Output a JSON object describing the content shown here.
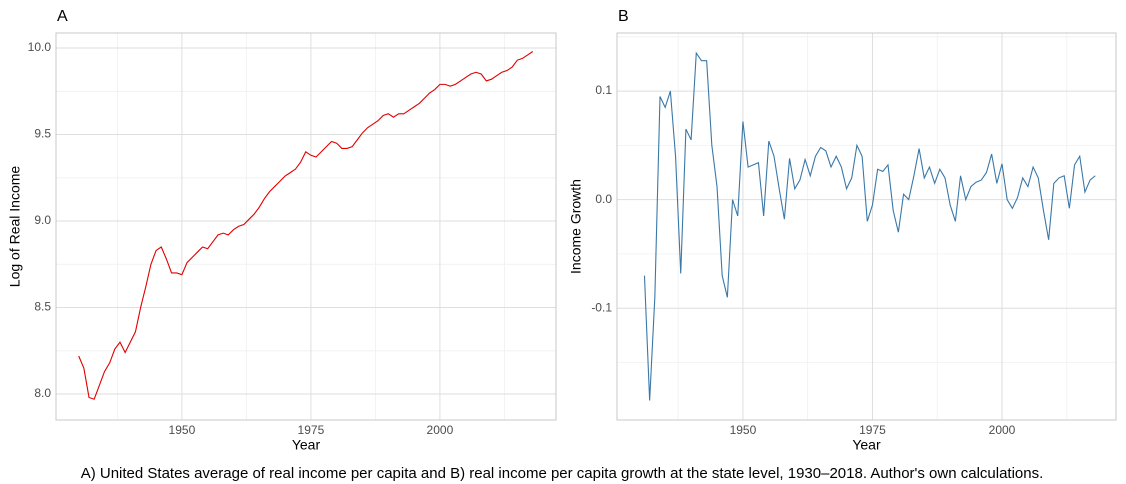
{
  "chart_data": [
    {
      "type": "line",
      "title": "A",
      "xlabel": "Year",
      "ylabel": "Log of Real Income",
      "color": "#e00000",
      "x": [
        1930,
        1931,
        1932,
        1933,
        1934,
        1935,
        1936,
        1937,
        1938,
        1939,
        1940,
        1941,
        1942,
        1943,
        1944,
        1945,
        1946,
        1947,
        1948,
        1949,
        1950,
        1951,
        1952,
        1953,
        1954,
        1955,
        1956,
        1957,
        1958,
        1959,
        1960,
        1961,
        1962,
        1963,
        1964,
        1965,
        1966,
        1967,
        1968,
        1969,
        1970,
        1971,
        1972,
        1973,
        1974,
        1975,
        1976,
        1977,
        1978,
        1979,
        1980,
        1981,
        1982,
        1983,
        1984,
        1985,
        1986,
        1987,
        1988,
        1989,
        1990,
        1991,
        1992,
        1993,
        1994,
        1995,
        1996,
        1997,
        1998,
        1999,
        2000,
        2001,
        2002,
        2003,
        2004,
        2005,
        2006,
        2007,
        2008,
        2009,
        2010,
        2011,
        2012,
        2013,
        2014,
        2015,
        2016,
        2017,
        2018
      ],
      "values": [
        8.22,
        8.15,
        7.98,
        7.97,
        8.05,
        8.13,
        8.18,
        8.26,
        8.3,
        8.24,
        8.3,
        8.36,
        8.5,
        8.62,
        8.75,
        8.83,
        8.85,
        8.78,
        8.7,
        8.7,
        8.69,
        8.76,
        8.79,
        8.82,
        8.85,
        8.84,
        8.88,
        8.92,
        8.93,
        8.92,
        8.95,
        8.97,
        8.98,
        9.01,
        9.04,
        9.08,
        9.13,
        9.17,
        9.2,
        9.23,
        9.26,
        9.28,
        9.3,
        9.34,
        9.4,
        9.38,
        9.37,
        9.4,
        9.43,
        9.46,
        9.45,
        9.42,
        9.42,
        9.43,
        9.47,
        9.51,
        9.54,
        9.56,
        9.58,
        9.61,
        9.62,
        9.6,
        9.62,
        9.62,
        9.64,
        9.66,
        9.68,
        9.71,
        9.74,
        9.76,
        9.79,
        9.79,
        9.78,
        9.79,
        9.81,
        9.83,
        9.85,
        9.86,
        9.85,
        9.81,
        9.82,
        9.84,
        9.86,
        9.87,
        9.89,
        9.93,
        9.94,
        9.96,
        9.98
      ],
      "xlim": [
        1925.6,
        2022.5
      ],
      "ylim": [
        7.85,
        10.087
      ],
      "xticks": [
        1950,
        1975,
        2000
      ],
      "yticks": [
        {
          "value": 8,
          "label": "8.0"
        },
        8.5,
        {
          "value": 9,
          "label": "9.0"
        },
        9.5,
        {
          "value": 10,
          "label": "10.0"
        }
      ],
      "grid": true,
      "minor_grid": true
    },
    {
      "type": "line",
      "title": "B",
      "xlabel": "Year",
      "ylabel": "Income Growth",
      "color": "#3a78a8",
      "x": [
        1931,
        1932,
        1933,
        1934,
        1935,
        1936,
        1937,
        1938,
        1939,
        1940,
        1941,
        1942,
        1943,
        1944,
        1945,
        1946,
        1947,
        1948,
        1949,
        1950,
        1951,
        1952,
        1953,
        1954,
        1955,
        1956,
        1957,
        1958,
        1959,
        1960,
        1961,
        1962,
        1963,
        1964,
        1965,
        1966,
        1967,
        1968,
        1969,
        1970,
        1971,
        1972,
        1973,
        1974,
        1975,
        1976,
        1977,
        1978,
        1979,
        1980,
        1981,
        1982,
        1983,
        1984,
        1985,
        1986,
        1987,
        1988,
        1989,
        1990,
        1991,
        1992,
        1993,
        1994,
        1995,
        1996,
        1997,
        1998,
        1999,
        2000,
        2001,
        2002,
        2003,
        2004,
        2005,
        2006,
        2007,
        2008,
        2009,
        2010,
        2011,
        2012,
        2013,
        2014,
        2015,
        2016,
        2017,
        2018
      ],
      "values": [
        -0.07,
        -0.185,
        -0.09,
        0.095,
        0.085,
        0.1,
        0.04,
        -0.068,
        0.065,
        0.055,
        0.135,
        0.128,
        0.128,
        0.05,
        0.012,
        -0.07,
        -0.09,
        0.0,
        -0.015,
        0.072,
        0.03,
        0.032,
        0.034,
        -0.015,
        0.054,
        0.04,
        0.01,
        -0.018,
        0.038,
        0.01,
        0.018,
        0.037,
        0.022,
        0.04,
        0.048,
        0.045,
        0.03,
        0.04,
        0.03,
        0.01,
        0.02,
        0.05,
        0.04,
        -0.02,
        -0.005,
        0.028,
        0.026,
        0.032,
        -0.01,
        -0.03,
        0.005,
        0.0,
        0.022,
        0.047,
        0.02,
        0.03,
        0.015,
        0.028,
        0.02,
        -0.005,
        -0.02,
        0.022,
        0.0,
        0.012,
        0.016,
        0.018,
        0.025,
        0.042,
        0.015,
        0.033,
        0.0,
        -0.008,
        0.002,
        0.02,
        0.012,
        0.03,
        0.02,
        -0.01,
        -0.037,
        0.015,
        0.02,
        0.022,
        -0.008,
        0.032,
        0.04,
        0.007,
        0.018,
        0.022
      ],
      "xlim": [
        1925.7,
        2022
      ],
      "ylim": [
        -0.203,
        0.1535
      ],
      "xticks": [
        1950,
        1975,
        2000
      ],
      "yticks": [
        -0.1,
        {
          "value": 0,
          "label": "0.0"
        },
        0.1
      ],
      "grid": true,
      "minor_grid": true
    }
  ],
  "caption": "A) United States average of real income per capita and B) real income per capita growth at the state level, 1930–2018. Author's own calculations."
}
